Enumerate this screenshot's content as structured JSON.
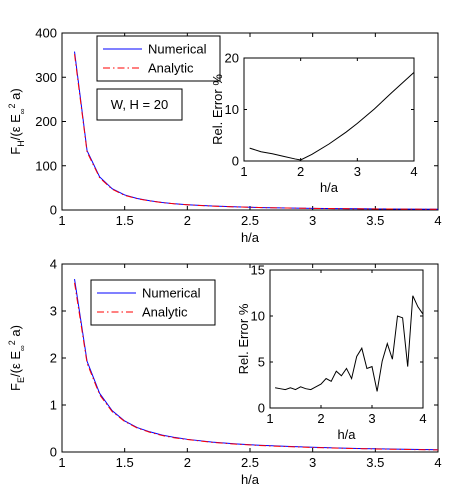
{
  "chart_data": [
    {
      "type": "line",
      "panel": "top",
      "xlabel": "h/a",
      "ylabel": "F_H/(ε E_∞^2 a)",
      "xlim": [
        1,
        4
      ],
      "ylim": [
        0,
        400
      ],
      "xticks": [
        "1",
        "1.5",
        "2",
        "2.5",
        "3",
        "3.5",
        "4"
      ],
      "yticks": [
        "0",
        "100",
        "200",
        "300",
        "400"
      ],
      "legend": {
        "position": "top-left",
        "entries": [
          "Numerical",
          "Analytic"
        ]
      },
      "annotation": "W, H = 20",
      "series": [
        {
          "name": "Numerical",
          "color": "#0000ff",
          "dash": "solid",
          "x": [
            1.1,
            1.2,
            1.3,
            1.4,
            1.5,
            1.6,
            1.7,
            1.8,
            1.9,
            2.0,
            2.2,
            2.4,
            2.6,
            2.8,
            3.0,
            3.2,
            3.4,
            3.6,
            3.8,
            4.0
          ],
          "y": [
            358,
            134,
            75,
            48,
            34,
            26,
            21,
            17,
            14,
            12,
            9,
            7,
            5.5,
            4.5,
            3.8,
            3.2,
            2.7,
            2.3,
            2.0,
            1.7
          ]
        },
        {
          "name": "Analytic",
          "color": "#ff0000",
          "dash": "dashdot",
          "x": [
            1.1,
            1.2,
            1.3,
            1.4,
            1.5,
            1.6,
            1.7,
            1.8,
            1.9,
            2.0,
            2.2,
            2.4,
            2.6,
            2.8,
            3.0,
            3.2,
            3.4,
            3.6,
            3.8,
            4.0
          ],
          "y": [
            352,
            131,
            73,
            47,
            33,
            25.5,
            20.5,
            16.7,
            13.8,
            11.8,
            8.8,
            6.9,
            5.4,
            4.4,
            3.7,
            3.1,
            2.6,
            2.2,
            1.9,
            1.6
          ]
        }
      ],
      "inset": {
        "type": "line",
        "xlabel": "h/a",
        "ylabel": "Rel. Error %",
        "xlim": [
          1,
          4
        ],
        "ylim": [
          0,
          20
        ],
        "xticks": [
          "1",
          "2",
          "3",
          "4"
        ],
        "yticks": [
          "0",
          "10",
          "20"
        ],
        "series": [
          {
            "color": "#000000",
            "x": [
              1.1,
              1.3,
              1.5,
              1.7,
              1.9,
              2.0,
              2.2,
              2.5,
              2.8,
              3.0,
              3.3,
              3.6,
              4.0
            ],
            "y": [
              2.5,
              1.8,
              1.4,
              0.9,
              0.4,
              0.2,
              1.3,
              3.3,
              5.6,
              7.3,
              10.1,
              13.2,
              17.2
            ]
          }
        ]
      }
    },
    {
      "type": "line",
      "panel": "bottom",
      "xlabel": "h/a",
      "ylabel": "F_E/(ε E_∞^2 a)",
      "xlim": [
        1,
        4
      ],
      "ylim": [
        0,
        4
      ],
      "xticks": [
        "1",
        "1.5",
        "2",
        "2.5",
        "3",
        "3.5",
        "4"
      ],
      "yticks": [
        "0",
        "1",
        "2",
        "3",
        "4"
      ],
      "legend": {
        "position": "top-left",
        "entries": [
          "Numerical",
          "Analytic"
        ]
      },
      "series": [
        {
          "name": "Numerical",
          "color": "#0000ff",
          "dash": "solid",
          "x": [
            1.1,
            1.2,
            1.3,
            1.4,
            1.5,
            1.6,
            1.7,
            1.8,
            1.9,
            2.0,
            2.2,
            2.4,
            2.6,
            2.8,
            3.0,
            3.2,
            3.4,
            3.6,
            3.8,
            4.0
          ],
          "y": [
            3.68,
            1.93,
            1.25,
            0.88,
            0.66,
            0.52,
            0.43,
            0.36,
            0.31,
            0.27,
            0.21,
            0.17,
            0.14,
            0.12,
            0.1,
            0.085,
            0.073,
            0.063,
            0.055,
            0.048
          ]
        },
        {
          "name": "Analytic",
          "color": "#ff0000",
          "dash": "dashdot",
          "x": [
            1.1,
            1.2,
            1.3,
            1.4,
            1.5,
            1.6,
            1.7,
            1.8,
            1.9,
            2.0,
            2.2,
            2.4,
            2.6,
            2.8,
            3.0,
            3.2,
            3.4,
            3.6,
            3.8,
            4.0
          ],
          "y": [
            3.6,
            1.89,
            1.22,
            0.86,
            0.65,
            0.51,
            0.42,
            0.35,
            0.3,
            0.265,
            0.205,
            0.165,
            0.135,
            0.115,
            0.097,
            0.082,
            0.07,
            0.06,
            0.052,
            0.045
          ]
        }
      ],
      "inset": {
        "type": "line",
        "xlabel": "h/a",
        "ylabel": "Rel. Error %",
        "xlim": [
          1,
          4
        ],
        "ylim": [
          0,
          15
        ],
        "xticks": [
          "1",
          "2",
          "3",
          "4"
        ],
        "yticks": [
          "0",
          "5",
          "10",
          "15"
        ],
        "series": [
          {
            "color": "#000000",
            "x": [
              1.1,
              1.2,
              1.3,
              1.4,
              1.5,
              1.6,
              1.7,
              1.8,
              1.9,
              2.0,
              2.1,
              2.2,
              2.3,
              2.4,
              2.5,
              2.6,
              2.7,
              2.8,
              2.9,
              3.0,
              3.1,
              3.2,
              3.3,
              3.4,
              3.5,
              3.6,
              3.7,
              3.8,
              3.9,
              4.0
            ],
            "y": [
              2.2,
              2.1,
              2.0,
              2.2,
              2.0,
              2.3,
              2.1,
              2.0,
              2.3,
              2.6,
              3.2,
              2.9,
              4.0,
              3.5,
              4.3,
              3.2,
              5.6,
              6.5,
              4.3,
              4.5,
              1.8,
              5.1,
              7.0,
              5.3,
              10.0,
              9.8,
              4.5,
              12.2,
              11.0,
              10.2
            ]
          }
        ]
      }
    }
  ]
}
